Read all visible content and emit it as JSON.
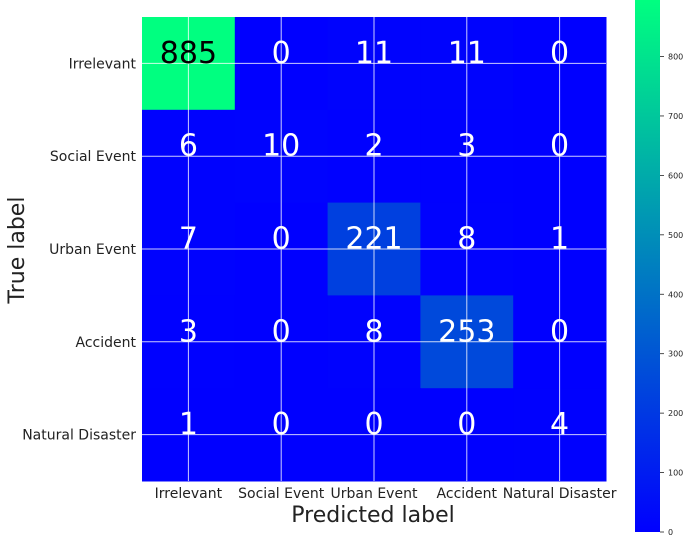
{
  "chart_data": {
    "type": "heatmap",
    "title": "",
    "xlabel": "Predicted label",
    "ylabel": "True label",
    "x_categories": [
      "Irrelevant",
      "Social Event",
      "Urban Event",
      "Accident",
      "Natural Disaster"
    ],
    "y_categories": [
      "Irrelevant",
      "Social Event",
      "Urban Event",
      "Accident",
      "Natural Disaster"
    ],
    "matrix": [
      [
        885,
        0,
        11,
        11,
        0
      ],
      [
        6,
        10,
        2,
        3,
        0
      ],
      [
        7,
        0,
        221,
        8,
        1
      ],
      [
        3,
        0,
        8,
        253,
        0
      ],
      [
        1,
        0,
        0,
        0,
        4
      ]
    ],
    "colormap": "winter",
    "colormap_low": "#0000ff",
    "colormap_high": "#00ff80",
    "vmin": 0,
    "vmax": 885,
    "grid": true,
    "colorbar": {
      "placement": "right",
      "ticks": [
        0,
        100,
        200,
        300,
        400,
        500,
        600,
        700,
        800
      ]
    }
  }
}
